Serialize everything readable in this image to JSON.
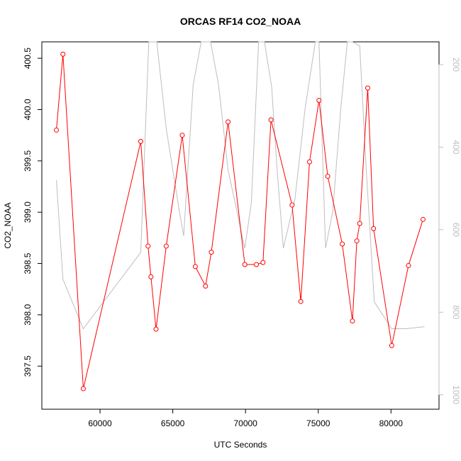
{
  "chart_data": {
    "type": "line",
    "title": "ORCAS RF14 CO2_NOAA",
    "xlabel": "UTC Seconds",
    "ylabel": "CO2_NOAA",
    "xlim": [
      56000,
      83300
    ],
    "ylim": [
      397.08,
      400.66
    ],
    "x_ticks": [
      60000,
      65000,
      70000,
      75000,
      80000
    ],
    "x_tick_labels": [
      "60000",
      "65000",
      "70000",
      "75000",
      "80000"
    ],
    "y_ticks": [
      397.5,
      398.0,
      398.5,
      399.0,
      399.5,
      400.0,
      400.5
    ],
    "y_tick_labels": [
      "397.5",
      "398.0",
      "398.5",
      "399.0",
      "399.5",
      "400.0",
      "400.5"
    ],
    "y2lim": [
      1035,
      145
    ],
    "y2_ticks": [
      200,
      400,
      600,
      800,
      1000
    ],
    "y2_tick_labels": [
      "200",
      "400",
      "600",
      "800",
      "1000"
    ],
    "grid": false,
    "series": [
      {
        "color": "#ff0000",
        "axis": "left",
        "markers": "open-circle",
        "x": [
          57000,
          57450,
          58850,
          62800,
          63300,
          63500,
          63850,
          64550,
          65650,
          66550,
          67250,
          67650,
          68800,
          69950,
          70750,
          71200,
          71750,
          73200,
          73800,
          74400,
          75050,
          75650,
          76650,
          77350,
          77650,
          77850,
          78400,
          78800,
          80050,
          81200,
          82200
        ],
        "y": [
          399.8,
          400.54,
          397.28,
          399.69,
          398.67,
          398.37,
          397.86,
          398.67,
          399.75,
          398.47,
          398.28,
          398.61,
          399.88,
          398.49,
          398.49,
          398.51,
          399.9,
          399.07,
          398.13,
          399.49,
          400.09,
          399.35,
          398.69,
          397.94,
          398.72,
          398.89,
          400.21,
          398.84,
          397.7,
          398.48,
          398.93
        ]
      },
      {
        "color": "#bebebe",
        "axis": "right",
        "markers": "none",
        "x": [
          57000,
          57450,
          58850,
          62800,
          63350,
          63900,
          64550,
          65450,
          65750,
          66400,
          66950,
          67600,
          68150,
          68800,
          69950,
          70400,
          70900,
          71300,
          71800,
          72150,
          72600,
          73400,
          74100,
          74800,
          75050,
          75500,
          76000,
          76550,
          77000,
          77350,
          77850,
          78300,
          78850,
          80050,
          81000,
          82300
        ],
        "y": [
          480,
          720,
          840,
          655,
          90,
          90,
          355,
          555,
          615,
          250,
          90,
          90,
          250,
          455,
          645,
          535,
          90,
          90,
          255,
          445,
          645,
          525,
          305,
          90,
          90,
          645,
          555,
          305,
          90,
          90,
          155,
          455,
          775,
          840,
          840,
          835
        ]
      }
    ]
  }
}
